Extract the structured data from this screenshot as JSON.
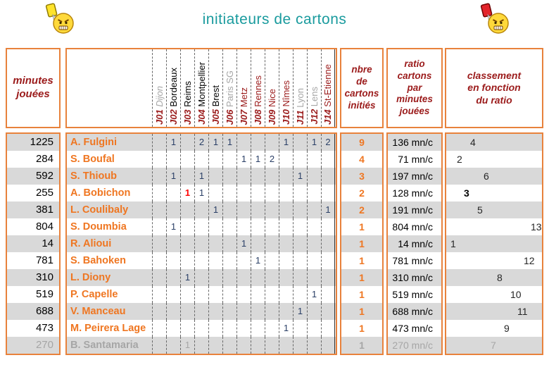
{
  "title": "initiateurs de cartons",
  "colors": {
    "accent_orange": "#EF7621",
    "border_orange": "#E8823C",
    "dark_red": "#9B1B1B",
    "teal_title": "#1A9B9E",
    "stripe_gray": "#D9D9D9",
    "muted_gray": "#A6A6A6",
    "red_card": "#FF0000"
  },
  "icons": {
    "left": "yellow-card-smiley",
    "right": "red-card-smiley"
  },
  "table": {
    "header_minutes": "minutes\njouées",
    "header_nbre": "nbre\nde\ncartons\ninitiés",
    "header_ratio": "ratio\ncartons\npar\nminutes\njouées",
    "header_classement": "classement\nen fonction\ndu ratio",
    "matchdays": [
      {
        "code": "J01",
        "team": "Dijon",
        "style": "gray_italic"
      },
      {
        "code": "J02",
        "team": "Bordeaux",
        "style": "black"
      },
      {
        "code": "J03",
        "team": "Reims",
        "style": "black"
      },
      {
        "code": "J04",
        "team": "Montpellier",
        "style": "black"
      },
      {
        "code": "J05",
        "team": "Brest",
        "style": "black"
      },
      {
        "code": "J06",
        "team": "Paris SG",
        "style": "gray"
      },
      {
        "code": "J07",
        "team": "Metz",
        "style": "darkred"
      },
      {
        "code": "J08",
        "team": "Rennes",
        "style": "darkred"
      },
      {
        "code": "J09",
        "team": "Nice",
        "style": "darkred"
      },
      {
        "code": "J10",
        "team": "Nîmes",
        "style": "darkred"
      },
      {
        "code": "J11",
        "team": "Lyon",
        "style": "gray"
      },
      {
        "code": "J12",
        "team": "Lens",
        "style": "gray"
      },
      {
        "code": "J14",
        "team": "St-Etienne",
        "style": "darkred"
      }
    ],
    "rows": [
      {
        "minutes": "1225",
        "name": "A. Fulgini",
        "cells": [
          "",
          "1",
          "",
          "2",
          "1",
          "1",
          "",
          "",
          "",
          "1",
          "",
          "1",
          "2"
        ],
        "nbre": "9",
        "ratio": "136 mn/c",
        "rank": 4
      },
      {
        "minutes": "284",
        "name": "S. Boufal",
        "cells": [
          "",
          "",
          "",
          "",
          "",
          "",
          "1",
          "1",
          "2",
          "",
          "",
          "",
          ""
        ],
        "nbre": "4",
        "ratio": "71 mn/c",
        "rank": 2
      },
      {
        "minutes": "592",
        "name": "S. Thioub",
        "cells": [
          "",
          "1",
          "",
          "1",
          "",
          "",
          "",
          "",
          "",
          "",
          "1",
          "",
          ""
        ],
        "nbre": "3",
        "ratio": "197 mn/c",
        "rank": 6
      },
      {
        "minutes": "255",
        "name": "A. Bobichon",
        "cells": [
          "",
          "",
          "1",
          "1",
          "",
          "",
          "",
          "",
          "",
          "",
          "",
          "",
          ""
        ],
        "red_cell": 2,
        "rank_bold": true,
        "nbre": "2",
        "ratio": "128 mn/c",
        "rank": 3
      },
      {
        "minutes": "381",
        "name": "L. Coulibaly",
        "cells": [
          "",
          "",
          "",
          "",
          "1",
          "",
          "",
          "",
          "",
          "",
          "",
          "",
          "1"
        ],
        "nbre": "2",
        "ratio": "191 mn/c",
        "rank": 5
      },
      {
        "minutes": "804",
        "name": "S. Doumbia",
        "cells": [
          "",
          "1",
          "",
          "",
          "",
          "",
          "",
          "",
          "",
          "",
          "",
          "",
          ""
        ],
        "nbre": "1",
        "ratio": "804 mn/c",
        "rank": 13
      },
      {
        "minutes": "14",
        "name": "R. Alioui",
        "cells": [
          "",
          "",
          "",
          "",
          "",
          "",
          "1",
          "",
          "",
          "",
          "",
          "",
          ""
        ],
        "nbre": "1",
        "ratio": "14 mn/c",
        "rank": 1
      },
      {
        "minutes": "781",
        "name": "S. Bahoken",
        "cells": [
          "",
          "",
          "",
          "",
          "",
          "",
          "",
          "1",
          "",
          "",
          "",
          "",
          ""
        ],
        "nbre": "1",
        "ratio": "781 mn/c",
        "rank": 12
      },
      {
        "minutes": "310",
        "name": "L. Diony",
        "cells": [
          "",
          "",
          "1",
          "",
          "",
          "",
          "",
          "",
          "",
          "",
          "",
          "",
          ""
        ],
        "nbre": "1",
        "ratio": "310 mn/c",
        "rank": 8
      },
      {
        "minutes": "519",
        "name": "P. Capelle",
        "cells": [
          "",
          "",
          "",
          "",
          "",
          "",
          "",
          "",
          "",
          "",
          "",
          "1",
          ""
        ],
        "nbre": "1",
        "ratio": "519 mn/c",
        "rank": 10
      },
      {
        "minutes": "688",
        "name": "V. Manceau",
        "cells": [
          "",
          "",
          "",
          "",
          "",
          "",
          "",
          "",
          "",
          "",
          "1",
          "",
          ""
        ],
        "nbre": "1",
        "ratio": "688 mn/c",
        "rank": 11
      },
      {
        "minutes": "473",
        "name": "M. Peirera Lage",
        "cells": [
          "",
          "",
          "",
          "",
          "",
          "",
          "",
          "",
          "",
          "1",
          "",
          "",
          ""
        ],
        "nbre": "1",
        "ratio": "473 mn/c",
        "rank": 9
      },
      {
        "minutes": "270",
        "name": "B. Santamaria",
        "cells": [
          "",
          "",
          "1",
          "",
          "",
          "",
          "",
          "",
          "",
          "",
          "",
          "",
          ""
        ],
        "muted": true,
        "nbre": "1",
        "ratio": "270 mn/c",
        "rank": 7
      }
    ]
  }
}
